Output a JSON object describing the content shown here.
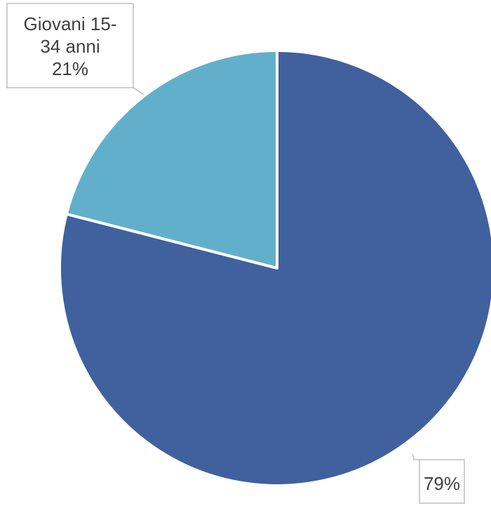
{
  "chart_data": {
    "type": "pie",
    "title": "",
    "slices": [
      {
        "label_lines": [],
        "percent_label": "79%",
        "value": 79,
        "color": "#41609e"
      },
      {
        "label_lines": [
          "Giovani 15-",
          "34 anni"
        ],
        "percent_label": "21%",
        "value": 21,
        "color": "#62afcc"
      }
    ],
    "start_angle_deg": 0,
    "direction": "clockwise",
    "slice_border_color": "#ffffff",
    "legend": "none"
  }
}
